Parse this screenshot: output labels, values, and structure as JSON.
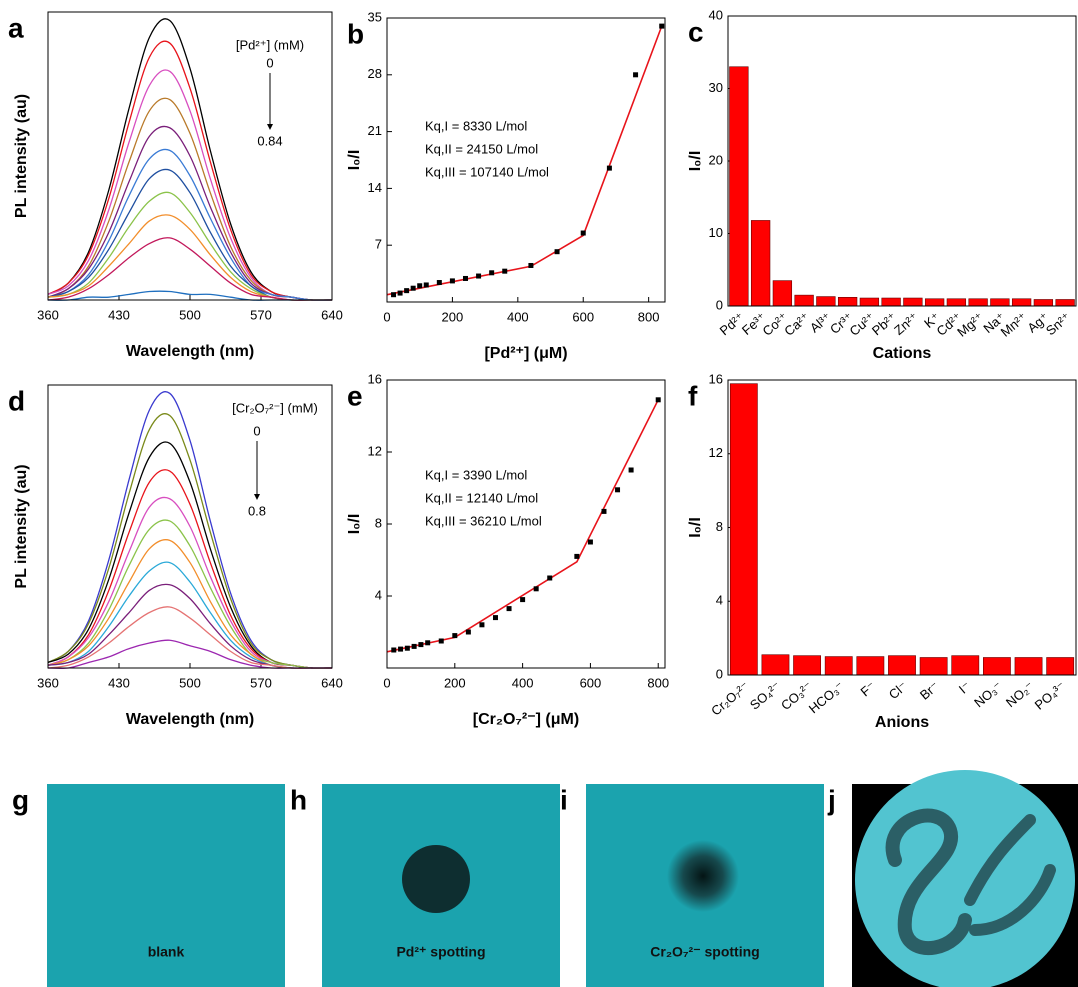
{
  "chart_data": [
    {
      "label": "a",
      "type": "line",
      "x": [
        360,
        380,
        400,
        420,
        440,
        460,
        480,
        500,
        520,
        540,
        560,
        580,
        600,
        620,
        640
      ],
      "series": [
        {
          "color": "#000000",
          "values": [
            0.02,
            0.06,
            0.17,
            0.39,
            0.68,
            0.93,
            0.99,
            0.82,
            0.53,
            0.27,
            0.1,
            0.03,
            0.01,
            0,
            0
          ]
        },
        {
          "color": "#e8141b",
          "values": [
            0.02,
            0.06,
            0.16,
            0.36,
            0.63,
            0.86,
            0.91,
            0.75,
            0.49,
            0.25,
            0.09,
            0.03,
            0.01,
            0,
            0
          ]
        },
        {
          "color": "#d84fc0",
          "values": [
            0.02,
            0.05,
            0.14,
            0.32,
            0.56,
            0.76,
            0.81,
            0.67,
            0.43,
            0.22,
            0.08,
            0.02,
            0.01,
            0,
            0
          ]
        },
        {
          "color": "#b97a2a",
          "values": [
            0.01,
            0.04,
            0.12,
            0.28,
            0.49,
            0.67,
            0.71,
            0.59,
            0.38,
            0.19,
            0.07,
            0.02,
            0.01,
            0,
            0
          ]
        },
        {
          "color": "#7a1f7a",
          "values": [
            0.01,
            0.04,
            0.11,
            0.24,
            0.42,
            0.58,
            0.61,
            0.51,
            0.33,
            0.17,
            0.06,
            0.02,
            0.01,
            0,
            0
          ]
        },
        {
          "color": "#3a7bd5",
          "values": [
            0.01,
            0.03,
            0.09,
            0.21,
            0.37,
            0.5,
            0.53,
            0.44,
            0.29,
            0.15,
            0.05,
            0.02,
            0.01,
            0,
            0
          ]
        },
        {
          "color": "#1f4fa0",
          "values": [
            0.01,
            0.03,
            0.08,
            0.18,
            0.31,
            0.43,
            0.46,
            0.38,
            0.24,
            0.12,
            0.05,
            0.01,
            0,
            0,
            0
          ]
        },
        {
          "color": "#8bc34a",
          "values": [
            0.01,
            0.02,
            0.06,
            0.15,
            0.26,
            0.35,
            0.38,
            0.31,
            0.2,
            0.1,
            0.04,
            0.01,
            0,
            0,
            0
          ]
        },
        {
          "color": "#f28e2b",
          "values": [
            0.01,
            0.02,
            0.05,
            0.12,
            0.2,
            0.28,
            0.3,
            0.25,
            0.16,
            0.08,
            0.03,
            0.01,
            0,
            0,
            0
          ]
        },
        {
          "color": "#c2185b",
          "values": [
            0,
            0.01,
            0.04,
            0.09,
            0.15,
            0.2,
            0.22,
            0.18,
            0.12,
            0.06,
            0.02,
            0.01,
            0,
            0,
            0
          ]
        },
        {
          "color": "#1f6fbf",
          "values": [
            0,
            0,
            0.01,
            0.01,
            0.02,
            0.03,
            0.03,
            0.02,
            0.02,
            0.01,
            0,
            0,
            0,
            0,
            0
          ]
        }
      ],
      "xlim": [
        360,
        640
      ],
      "xticks": [
        360,
        430,
        500,
        570,
        640
      ],
      "ylim": [
        0,
        1.02
      ],
      "x_label": "Wavelength (nm)",
      "y_label": "PL intensity (au)",
      "annotations": [
        "[Pd²⁺] (mM)",
        "0",
        "0.84"
      ]
    },
    {
      "label": "b",
      "type": "scatter",
      "x": [
        20,
        40,
        60,
        80,
        100,
        120,
        160,
        200,
        240,
        280,
        320,
        360,
        440,
        520,
        600,
        680,
        760,
        840
      ],
      "values": [
        0.9,
        1.1,
        1.4,
        1.7,
        2.0,
        2.1,
        2.4,
        2.6,
        2.9,
        3.2,
        3.6,
        3.8,
        4.5,
        6.2,
        8.5,
        16.5,
        28,
        34
      ],
      "color": "#000000",
      "fit": {
        "x": [
          0,
          440,
          600,
          840
        ],
        "values": [
          0.9,
          4.4,
          8.2,
          34
        ],
        "color": "#e8141b"
      },
      "xlim": [
        0,
        850
      ],
      "xticks": [
        0,
        200,
        400,
        600,
        800
      ],
      "ylim": [
        0,
        35
      ],
      "yticks": [
        7,
        14,
        21,
        28,
        35
      ],
      "x_label": "[Pd²⁺] (μM)",
      "y_label": "I₀/I",
      "annotations": [
        "Kq,I = 8330 L/mol",
        "Kq,II = 24150 L/mol",
        "Kq,III = 107140 L/mol"
      ]
    },
    {
      "label": "c",
      "type": "bar",
      "categories": [
        "Pd²⁺",
        "Fe³⁺",
        "Co²⁺",
        "Ca²⁺",
        "Al³⁺",
        "Cr³⁺",
        "Cu²⁺",
        "Pb²⁺",
        "Zn²⁺",
        "K⁺",
        "Cd²⁺",
        "Mg²⁺",
        "Na⁺",
        "Mn²⁺",
        "Ag⁺",
        "Sn²⁺"
      ],
      "values": [
        33,
        11.8,
        3.5,
        1.5,
        1.3,
        1.2,
        1.1,
        1.1,
        1.1,
        1.0,
        1.0,
        1.0,
        1.0,
        1.0,
        0.9,
        0.9
      ],
      "color": "#ff0000",
      "ylim": [
        0,
        40
      ],
      "yticks": [
        0,
        10,
        20,
        30,
        40
      ],
      "x_label": "Cations",
      "y_label": "I₀/I"
    },
    {
      "label": "d",
      "type": "line",
      "x": [
        360,
        380,
        400,
        420,
        440,
        460,
        480,
        500,
        520,
        540,
        560,
        580,
        600,
        620,
        640
      ],
      "series": [
        {
          "color": "#3a3acf",
          "values": [
            0.02,
            0.06,
            0.17,
            0.39,
            0.68,
            0.93,
            0.99,
            0.82,
            0.53,
            0.27,
            0.1,
            0.03,
            0.01,
            0,
            0
          ]
        },
        {
          "color": "#7a8a1a",
          "values": [
            0.02,
            0.06,
            0.16,
            0.36,
            0.63,
            0.86,
            0.91,
            0.75,
            0.49,
            0.25,
            0.09,
            0.03,
            0.01,
            0,
            0
          ]
        },
        {
          "color": "#000000",
          "values": [
            0.02,
            0.05,
            0.14,
            0.32,
            0.56,
            0.76,
            0.81,
            0.67,
            0.43,
            0.22,
            0.08,
            0.02,
            0.01,
            0,
            0
          ]
        },
        {
          "color": "#e8141b",
          "values": [
            0.01,
            0.04,
            0.12,
            0.28,
            0.49,
            0.67,
            0.71,
            0.59,
            0.38,
            0.19,
            0.07,
            0.02,
            0.01,
            0,
            0
          ]
        },
        {
          "color": "#d84fc0",
          "values": [
            0.01,
            0.04,
            0.11,
            0.24,
            0.42,
            0.58,
            0.61,
            0.51,
            0.33,
            0.17,
            0.06,
            0.02,
            0.01,
            0,
            0
          ]
        },
        {
          "color": "#8bc34a",
          "values": [
            0.01,
            0.03,
            0.09,
            0.21,
            0.37,
            0.5,
            0.53,
            0.44,
            0.29,
            0.15,
            0.05,
            0.02,
            0.01,
            0,
            0
          ]
        },
        {
          "color": "#f28e2b",
          "values": [
            0.01,
            0.03,
            0.08,
            0.18,
            0.31,
            0.43,
            0.46,
            0.38,
            0.24,
            0.12,
            0.05,
            0.01,
            0,
            0,
            0
          ]
        },
        {
          "color": "#2aa9d8",
          "values": [
            0.01,
            0.02,
            0.06,
            0.15,
            0.26,
            0.35,
            0.38,
            0.31,
            0.2,
            0.1,
            0.04,
            0.01,
            0,
            0,
            0
          ]
        },
        {
          "color": "#7a1f7a",
          "values": [
            0.01,
            0.02,
            0.05,
            0.12,
            0.2,
            0.28,
            0.3,
            0.25,
            0.16,
            0.08,
            0.03,
            0.01,
            0,
            0,
            0
          ]
        },
        {
          "color": "#e57373",
          "values": [
            0,
            0.01,
            0.04,
            0.09,
            0.15,
            0.2,
            0.22,
            0.18,
            0.12,
            0.06,
            0.02,
            0.01,
            0,
            0,
            0
          ]
        },
        {
          "color": "#9c27b0",
          "values": [
            0,
            0,
            0.02,
            0.04,
            0.07,
            0.09,
            0.1,
            0.08,
            0.06,
            0.03,
            0.01,
            0,
            0,
            0,
            0
          ]
        }
      ],
      "xlim": [
        360,
        640
      ],
      "xticks": [
        360,
        430,
        500,
        570,
        640
      ],
      "ylim": [
        0,
        1.02
      ],
      "x_label": "Wavelength (nm)",
      "y_label": "PL intensity (au)",
      "annotations": [
        "[Cr₂O₇²⁻] (mM)",
        "0",
        "0.8"
      ]
    },
    {
      "label": "e",
      "type": "scatter",
      "x": [
        20,
        40,
        60,
        80,
        100,
        120,
        160,
        200,
        240,
        280,
        320,
        360,
        400,
        440,
        480,
        560,
        600,
        640,
        680,
        720,
        800
      ],
      "values": [
        1.0,
        1.05,
        1.1,
        1.2,
        1.3,
        1.4,
        1.5,
        1.8,
        2.0,
        2.4,
        2.8,
        3.3,
        3.8,
        4.4,
        5.0,
        6.2,
        7.0,
        8.7,
        9.9,
        11.0,
        14.9
      ],
      "color": "#000000",
      "fit": {
        "x": [
          0,
          200,
          560,
          800
        ],
        "values": [
          0.9,
          1.7,
          5.9,
          14.9
        ],
        "color": "#e8141b"
      },
      "xlim": [
        0,
        820
      ],
      "xticks": [
        0,
        200,
        400,
        600,
        800
      ],
      "ylim": [
        0,
        16
      ],
      "yticks": [
        4,
        8,
        12,
        16
      ],
      "x_label": "[Cr₂O₇²⁻] (μM)",
      "y_label": "I₀/I",
      "annotations": [
        "Kq,I = 3390 L/mol",
        "Kq,II = 12140 L/mol",
        "Kq,III = 36210 L/mol"
      ]
    },
    {
      "label": "f",
      "type": "bar",
      "categories": [
        "Cr₂O₇²⁻",
        "SO₄²⁻",
        "CO₃²⁻",
        "HCO₃⁻",
        "F⁻",
        "Cl⁻",
        "Br⁻",
        "I⁻",
        "NO₃⁻",
        "NO₂⁻",
        "PO₄³⁻"
      ],
      "values": [
        15.8,
        1.1,
        1.05,
        1.0,
        1.0,
        1.05,
        0.95,
        1.05,
        0.95,
        0.95,
        0.95
      ],
      "color": "#ff0000",
      "ylim": [
        0,
        16
      ],
      "yticks": [
        0,
        4,
        8,
        12,
        16
      ],
      "x_label": "Anions",
      "y_label": "I₀/I"
    }
  ],
  "photos": [
    {
      "label": "g",
      "caption": "blank"
    },
    {
      "label": "h",
      "caption": "Pd²⁺ spotting"
    },
    {
      "label": "i",
      "caption": "Cr₂O₇²⁻ spotting"
    },
    {
      "label": "j"
    }
  ]
}
